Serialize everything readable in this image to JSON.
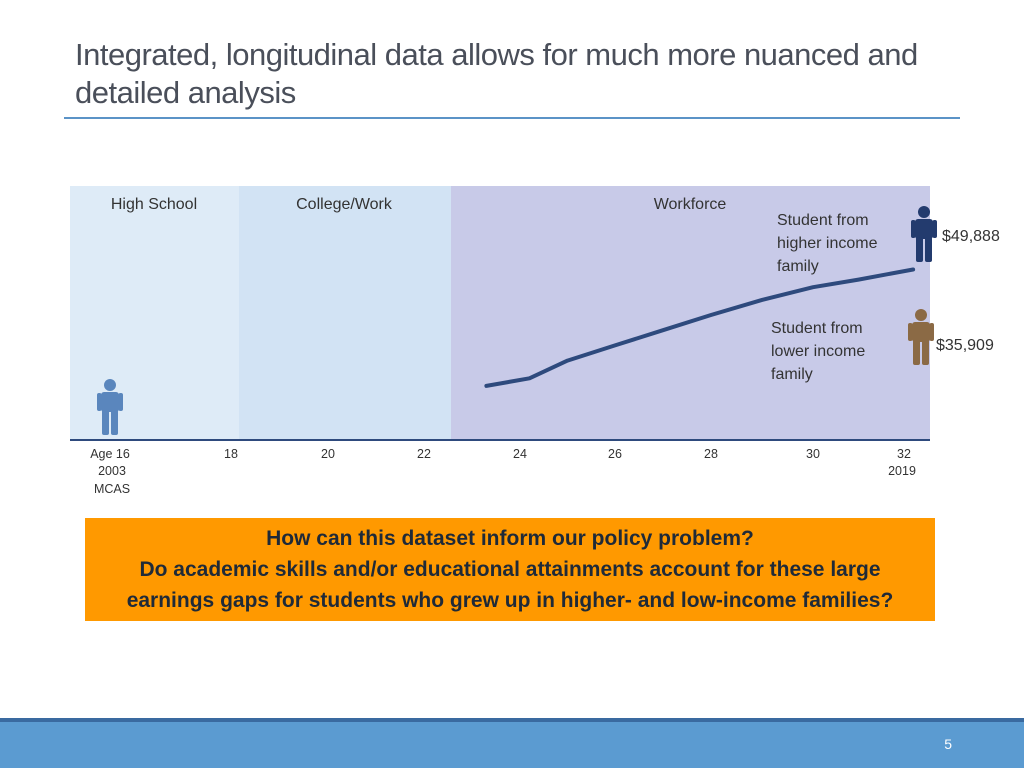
{
  "slide": {
    "title": "Integrated, longitudinal data allows for much more nuanced and detailed analysis",
    "page_number": "5"
  },
  "callout": {
    "line1": "How can this dataset inform our policy problem?",
    "line2": "Do academic skills and/or educational attainments account for these large",
    "line3": "earnings gaps for students who grew up in higher- and low-income families?"
  },
  "colors": {
    "high_school_band": "#deebf7",
    "college_band": "#d2e3f4",
    "workforce_band": "#c8cae8",
    "line": "#2e4a7d",
    "person_start": "#5a86bd",
    "person_high": "#233b6e",
    "person_low": "#8b6a45",
    "callout": "#ff9900",
    "footer": "#5b9bd1"
  },
  "chart_data": {
    "type": "line",
    "x_unit": "age",
    "xlim": [
      16,
      32
    ],
    "ylim": [
      0,
      100
    ],
    "y_axis_shown": false,
    "ticks": [
      {
        "x": 16,
        "label": "Age 16",
        "sub": [
          "2003",
          "MCAS"
        ]
      },
      {
        "x": 18,
        "label": "18",
        "sub": []
      },
      {
        "x": 20,
        "label": "20",
        "sub": []
      },
      {
        "x": 22,
        "label": "22",
        "sub": []
      },
      {
        "x": 24,
        "label": "24",
        "sub": []
      },
      {
        "x": 26,
        "label": "26",
        "sub": []
      },
      {
        "x": 28,
        "label": "28",
        "sub": []
      },
      {
        "x": 30,
        "label": "30",
        "sub": []
      },
      {
        "x": 32,
        "label": "32",
        "sub": [
          "2019"
        ]
      }
    ],
    "stages": [
      {
        "label": "High School",
        "from": 16,
        "to": 19.5
      },
      {
        "label": "College/Work",
        "from": 19.5,
        "to": 23.3
      },
      {
        "label": "Workforce",
        "from": 23.3,
        "to": 32.5
      }
    ],
    "series": [
      {
        "x": [
          23.3,
          24.2,
          25.0,
          26.0,
          27.0,
          28.0,
          29.0,
          30.0,
          31.0,
          32.2
        ],
        "y": [
          21,
          24,
          31,
          37,
          43,
          49,
          55,
          60,
          63,
          67
        ]
      }
    ],
    "annotations": [
      {
        "text": [
          "Student from",
          "higher income",
          "family"
        ],
        "value": "$49,888",
        "group": "high"
      },
      {
        "text": [
          "Student from",
          "lower income",
          "family"
        ],
        "value": "$35,909",
        "group": "low"
      }
    ]
  }
}
